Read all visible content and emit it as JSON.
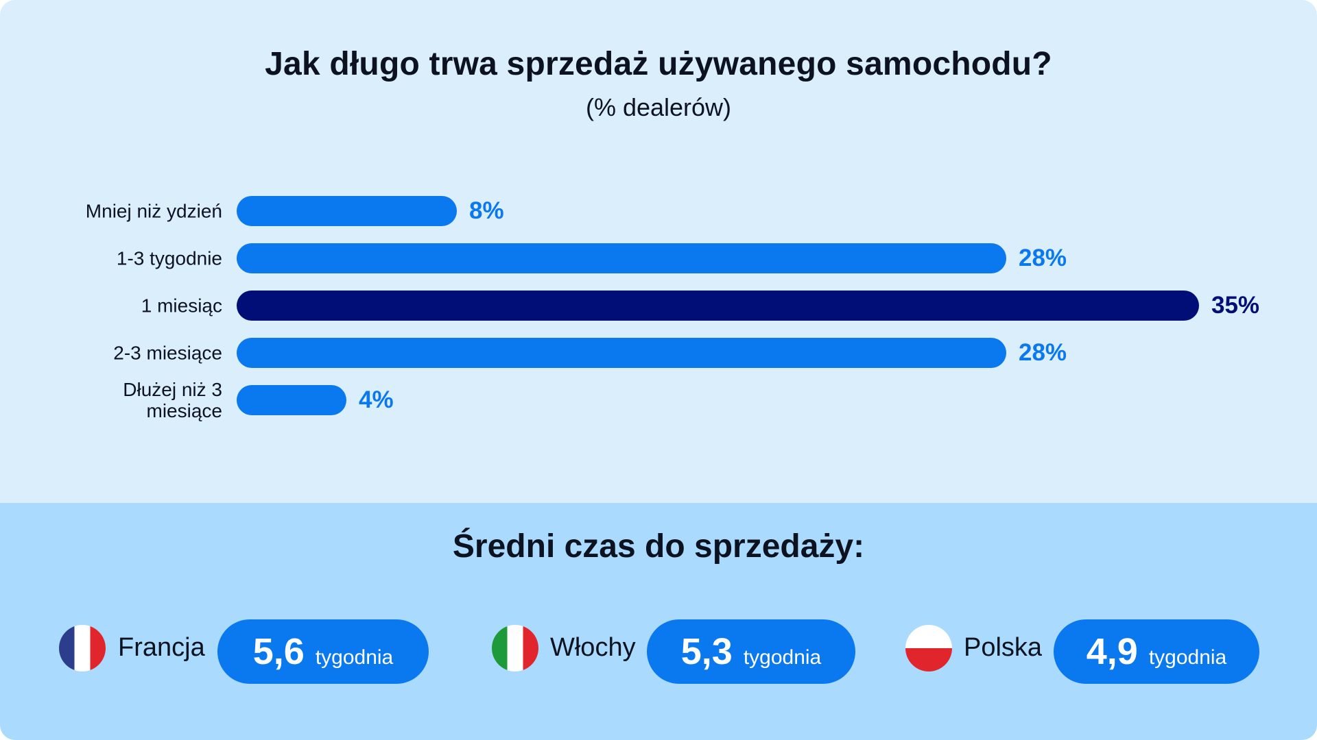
{
  "chart_data": {
    "type": "bar",
    "orientation": "horizontal",
    "title": "Jak długo trwa sprzedaż używanego samochodu?",
    "subtitle": "(% dealerów)",
    "categories": [
      "Mniej niż ydzień",
      "1-3 tygodnie",
      "1 miesiąc",
      "2-3 miesiące",
      "Dłużej niż 3 miesiące"
    ],
    "values": [
      8,
      28,
      35,
      28,
      4
    ],
    "value_labels": [
      "8%",
      "28%",
      "35%",
      "28%",
      "4%"
    ],
    "highlight_index": 2,
    "xlim": [
      0,
      35
    ],
    "grid": false,
    "legend": "none",
    "colors": {
      "bar": "#0a78ee",
      "highlight": "#010e78",
      "label": "#0a78ee",
      "label_highlight": "#010e78"
    }
  },
  "summary": {
    "title": "Średni czas do sprzedaży:",
    "items": [
      {
        "country": "Francja",
        "flag_icon": "france-flag-icon",
        "value": "5,6",
        "unit": "tygodnia"
      },
      {
        "country": "Włochy",
        "flag_icon": "italy-flag-icon",
        "value": "5,3",
        "unit": "tygodnia"
      },
      {
        "country": "Polska",
        "flag_icon": "poland-flag-icon",
        "value": "4,9",
        "unit": "tygodnia"
      }
    ]
  }
}
